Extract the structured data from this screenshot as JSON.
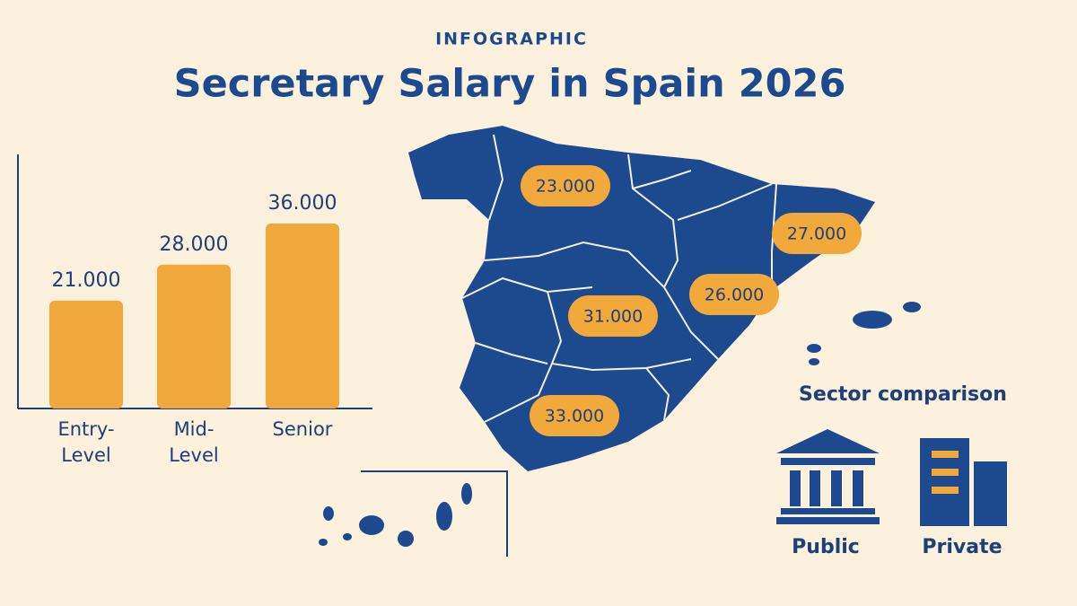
{
  "header": {
    "kicker": "INFOGRAPHIC",
    "title": "Secretary Salary in Spain 2026"
  },
  "chart_data": {
    "type": "bar",
    "categories": [
      "Entry-Level",
      "Mid-Level",
      "Senior"
    ],
    "values": [
      21000,
      28000,
      36000
    ],
    "value_labels": [
      "21.000",
      "28.000",
      "36.000"
    ],
    "color": "#f2a93b"
  },
  "map": {
    "labels": [
      "23.000",
      "27.000",
      "26.000",
      "31.000",
      "33.000"
    ]
  },
  "sector": {
    "title": "Sector comparison",
    "items": [
      "Public",
      "Private"
    ]
  }
}
